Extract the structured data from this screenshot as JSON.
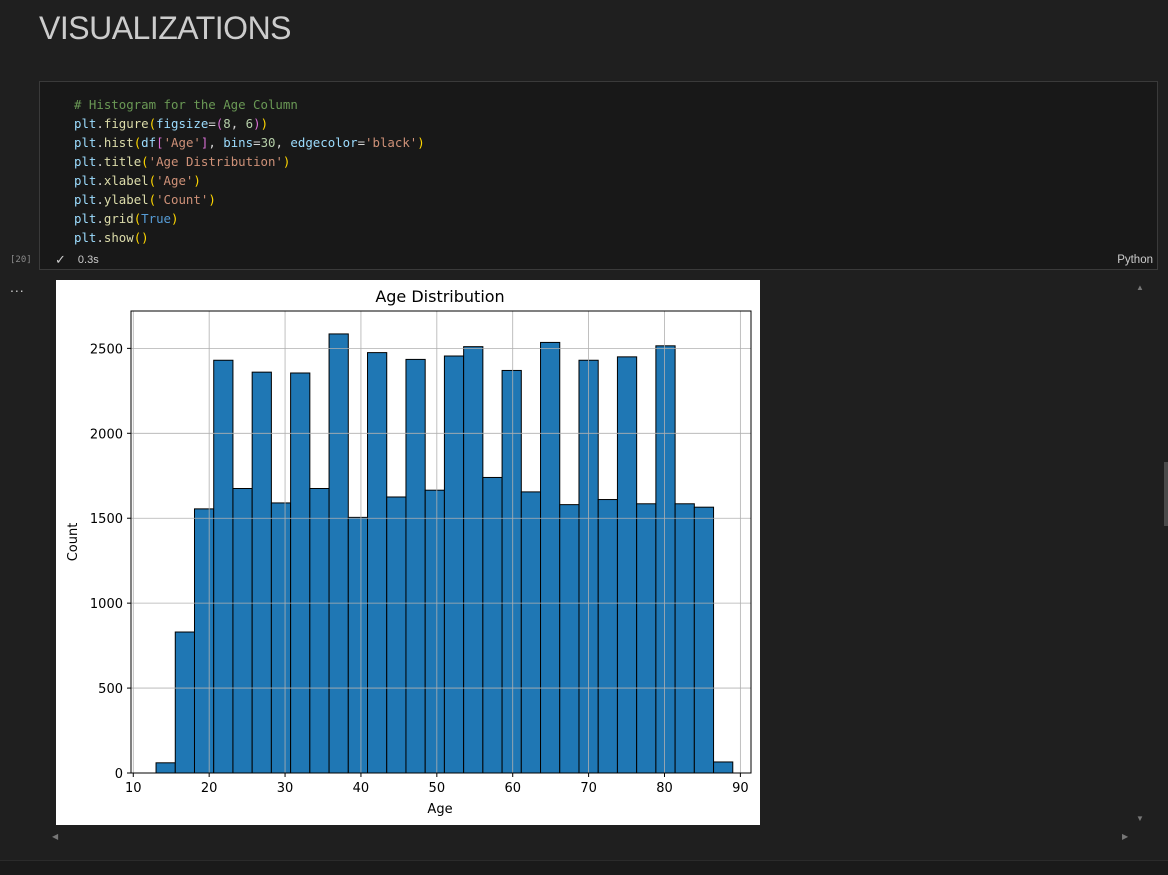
{
  "markdown": {
    "heading": "VISUALIZATIONS"
  },
  "cell": {
    "execution_count": "[20]",
    "duration": "0.3s",
    "language": "Python",
    "code_lines": [
      [
        {
          "t": "# Histogram for the Age Column",
          "c": "comment"
        }
      ],
      [
        {
          "t": "plt",
          "c": "var"
        },
        {
          "t": ".",
          "c": "punc"
        },
        {
          "t": "figure",
          "c": "fn"
        },
        {
          "t": "(",
          "c": "br1"
        },
        {
          "t": "figsize",
          "c": "var"
        },
        {
          "t": "=",
          "c": "punc"
        },
        {
          "t": "(",
          "c": "br2"
        },
        {
          "t": "8",
          "c": "num"
        },
        {
          "t": ", ",
          "c": "punc"
        },
        {
          "t": "6",
          "c": "num"
        },
        {
          "t": ")",
          "c": "br2"
        },
        {
          "t": ")",
          "c": "br1"
        }
      ],
      [
        {
          "t": "plt",
          "c": "var"
        },
        {
          "t": ".",
          "c": "punc"
        },
        {
          "t": "hist",
          "c": "fn"
        },
        {
          "t": "(",
          "c": "br1"
        },
        {
          "t": "df",
          "c": "var"
        },
        {
          "t": "[",
          "c": "br2"
        },
        {
          "t": "'Age'",
          "c": "str"
        },
        {
          "t": "]",
          "c": "br2"
        },
        {
          "t": ", ",
          "c": "punc"
        },
        {
          "t": "bins",
          "c": "var"
        },
        {
          "t": "=",
          "c": "punc"
        },
        {
          "t": "30",
          "c": "num"
        },
        {
          "t": ", ",
          "c": "punc"
        },
        {
          "t": "edgecolor",
          "c": "var"
        },
        {
          "t": "=",
          "c": "punc"
        },
        {
          "t": "'black'",
          "c": "str"
        },
        {
          "t": ")",
          "c": "br1"
        }
      ],
      [
        {
          "t": "plt",
          "c": "var"
        },
        {
          "t": ".",
          "c": "punc"
        },
        {
          "t": "title",
          "c": "fn"
        },
        {
          "t": "(",
          "c": "br1"
        },
        {
          "t": "'Age Distribution'",
          "c": "str"
        },
        {
          "t": ")",
          "c": "br1"
        }
      ],
      [
        {
          "t": "plt",
          "c": "var"
        },
        {
          "t": ".",
          "c": "punc"
        },
        {
          "t": "xlabel",
          "c": "fn"
        },
        {
          "t": "(",
          "c": "br1"
        },
        {
          "t": "'Age'",
          "c": "str"
        },
        {
          "t": ")",
          "c": "br1"
        }
      ],
      [
        {
          "t": "plt",
          "c": "var"
        },
        {
          "t": ".",
          "c": "punc"
        },
        {
          "t": "ylabel",
          "c": "fn"
        },
        {
          "t": "(",
          "c": "br1"
        },
        {
          "t": "'Count'",
          "c": "str"
        },
        {
          "t": ")",
          "c": "br1"
        }
      ],
      [
        {
          "t": "plt",
          "c": "var"
        },
        {
          "t": ".",
          "c": "punc"
        },
        {
          "t": "grid",
          "c": "fn"
        },
        {
          "t": "(",
          "c": "br1"
        },
        {
          "t": "True",
          "c": "kw"
        },
        {
          "t": ")",
          "c": "br1"
        }
      ],
      [
        {
          "t": "plt",
          "c": "var"
        },
        {
          "t": ".",
          "c": "punc"
        },
        {
          "t": "show",
          "c": "fn"
        },
        {
          "t": "()",
          "c": "br1"
        }
      ]
    ]
  },
  "output": {
    "more_label": "..."
  },
  "chart_data": {
    "type": "bar",
    "title": "Age Distribution",
    "xlabel": "Age",
    "ylabel": "Count",
    "xlim": [
      9.7,
      91.4
    ],
    "ylim": [
      0,
      2720
    ],
    "xticks": [
      10,
      20,
      30,
      40,
      50,
      60,
      70,
      80,
      90
    ],
    "yticks": [
      0,
      500,
      1000,
      1500,
      2000,
      2500
    ],
    "grid": true,
    "bar_color": "#1f77b4",
    "edge_color": "#000000",
    "bin_start": 13.0,
    "bin_width": 2.5333,
    "values": [
      60,
      830,
      1555,
      2430,
      1675,
      2360,
      1590,
      2355,
      1675,
      2585,
      1505,
      2475,
      1625,
      2435,
      1665,
      2455,
      2510,
      1740,
      2370,
      1655,
      2535,
      1580,
      2430,
      1610,
      2450,
      1585,
      2515,
      1585,
      1565,
      65
    ]
  }
}
